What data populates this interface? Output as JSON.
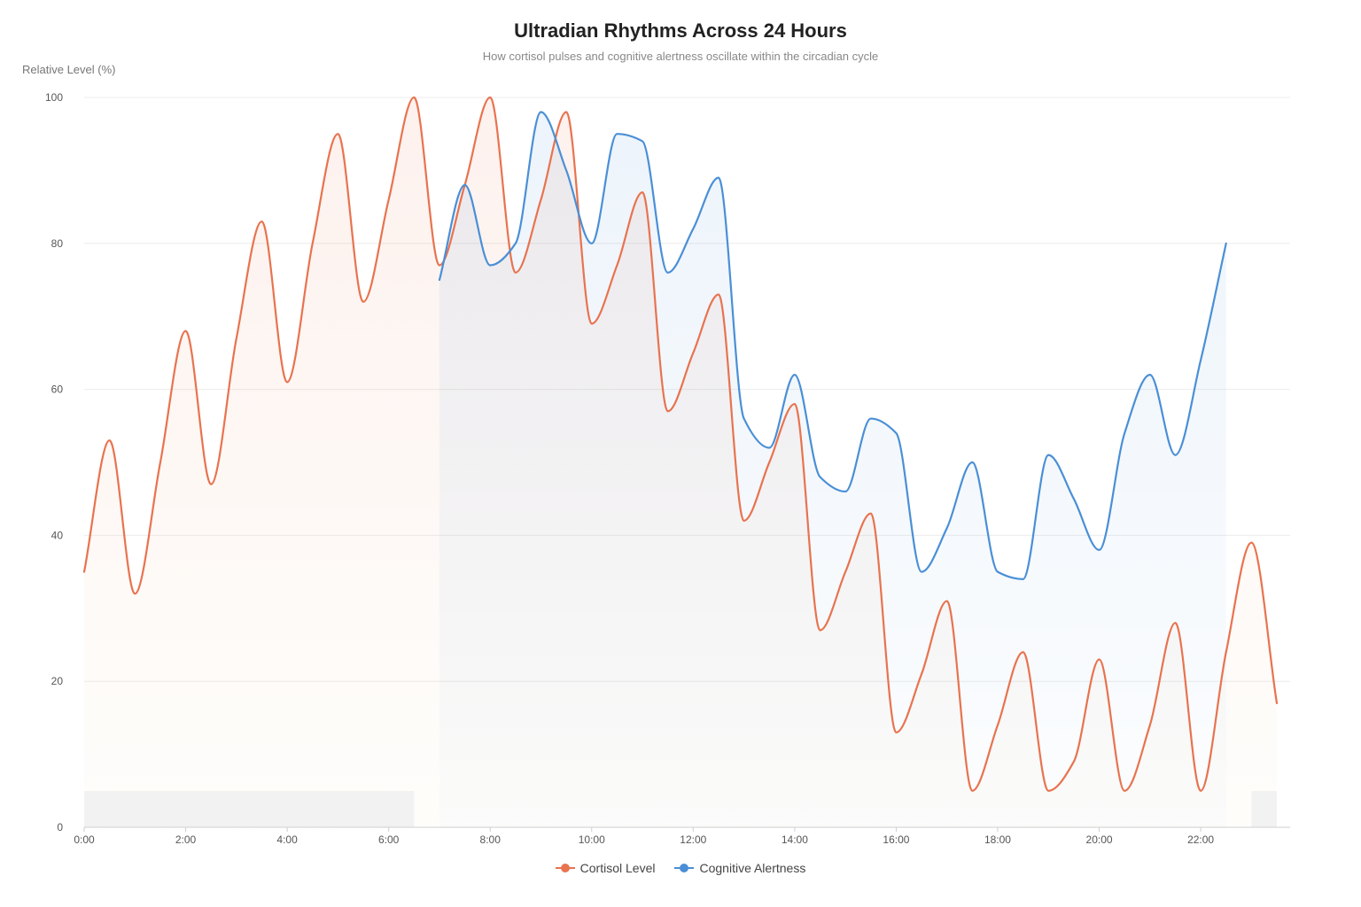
{
  "chart_data": {
    "type": "line",
    "title": "Ultradian Rhythms Across 24 Hours",
    "subtitle": "How cortisol pulses and cognitive alertness oscillate within the circadian cycle",
    "xlabel": "",
    "ylabel": "Relative Level (%)",
    "xlim": [
      0,
      23.5
    ],
    "ylim": [
      0,
      100
    ],
    "x_ticks": [
      "0:00",
      "2:00",
      "4:00",
      "6:00",
      "8:00",
      "10:00",
      "12:00",
      "14:00",
      "16:00",
      "18:00",
      "20:00",
      "22:00"
    ],
    "y_ticks": [
      0,
      20,
      40,
      60,
      80,
      100
    ],
    "grid": true,
    "legend": "bottom",
    "sleep_bands": [
      [
        0,
        6.5
      ],
      [
        23,
        23.5
      ]
    ],
    "series": [
      {
        "name": "Cortisol Level",
        "color": "#e8734f",
        "x": [
          0,
          0.5,
          1,
          1.5,
          2,
          2.5,
          3,
          3.5,
          4,
          4.5,
          5,
          5.5,
          6,
          6.5,
          7,
          7.5,
          8,
          8.5,
          9,
          9.5,
          10,
          10.5,
          11,
          11.5,
          12,
          12.5,
          13,
          13.5,
          14,
          14.5,
          15,
          15.5,
          16,
          16.5,
          17,
          17.5,
          18,
          18.5,
          19,
          19.5,
          20,
          20.5,
          21,
          21.5,
          22,
          22.5,
          23,
          23.5
        ],
        "values": [
          35,
          53,
          32,
          50,
          68,
          47,
          67,
          83,
          61,
          80,
          95,
          72,
          86,
          100,
          77,
          88,
          100,
          76,
          86,
          98,
          69,
          77,
          87,
          57,
          65,
          73,
          42,
          50,
          58,
          27,
          35,
          43,
          13,
          21,
          31,
          5,
          14,
          24,
          5,
          9,
          23,
          5,
          14,
          28,
          5,
          24,
          39,
          17
        ]
      },
      {
        "name": "Cognitive Alertness",
        "color": "#4a8fd6",
        "x": [
          7,
          7.5,
          8,
          8.5,
          9,
          9.5,
          10,
          10.5,
          11,
          11.5,
          12,
          12.5,
          13,
          13.5,
          14,
          14.5,
          15,
          15.5,
          16,
          16.5,
          17,
          17.5,
          18,
          18.5,
          19,
          19.5,
          20,
          20.5,
          21,
          21.5,
          22,
          22.5
        ],
        "values": [
          75,
          88,
          77,
          80,
          98,
          90,
          80,
          95,
          94,
          76,
          82,
          89,
          56,
          52,
          62,
          48,
          46,
          56,
          54,
          35,
          41,
          50,
          35,
          34,
          51,
          45,
          38,
          54,
          62,
          51,
          64,
          80
        ]
      }
    ]
  }
}
